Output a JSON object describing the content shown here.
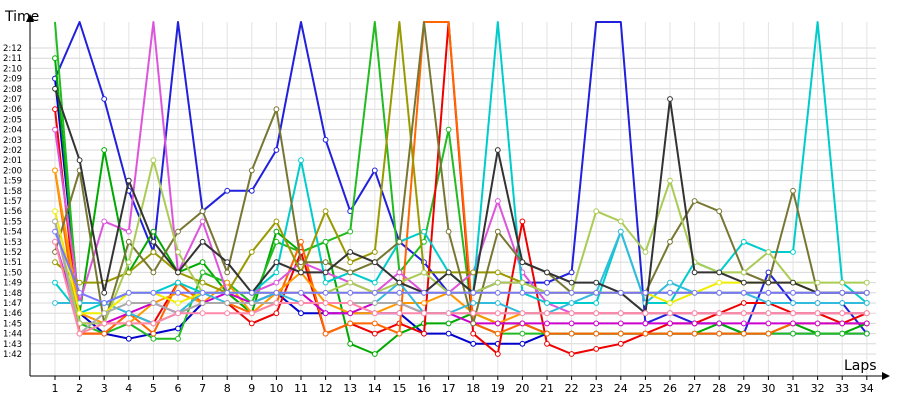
{
  "chart_data": {
    "type": "line",
    "xlabel": "Laps",
    "ylabel": "Time",
    "x": [
      1,
      2,
      3,
      4,
      5,
      6,
      7,
      8,
      9,
      10,
      11,
      12,
      13,
      14,
      15,
      16,
      17,
      18,
      19,
      20,
      21,
      22,
      23,
      24,
      25,
      26,
      27,
      28,
      29,
      30,
      31,
      32,
      33,
      34
    ],
    "xlim": [
      1,
      34
    ],
    "y_ticks": [
      "1:42",
      "1:43",
      "1:44",
      "1:45",
      "1:46",
      "1:47",
      "1:48",
      "1:49",
      "1:50",
      "1:51",
      "1:52",
      "1:53",
      "1:54",
      "1:55",
      "1:56",
      "1:57",
      "1:58",
      "1:59",
      "2:00",
      "2:01",
      "2:02",
      "2:03",
      "2:04",
      "2:05",
      "2:06",
      "2:07",
      "2:08",
      "2:09",
      "2:10",
      "2:11",
      "2:12"
    ],
    "ylim_seconds": [
      101,
      144
    ],
    "grid": true,
    "series": [
      {
        "color": "#0000cc",
        "values": [
          129,
          106,
          104,
          103.5,
          104,
          104.5,
          107,
          107,
          107,
          108,
          106,
          106,
          106,
          106,
          106,
          104,
          104,
          103,
          103,
          103,
          104,
          104,
          104,
          104,
          104,
          104,
          104,
          104,
          104,
          104,
          104,
          104,
          104,
          104
        ]
      },
      {
        "color": "#2020dd",
        "values": [
          129,
          135,
          127,
          118,
          112,
          144,
          116,
          118,
          118,
          122,
          144,
          123,
          116,
          120,
          113,
          111,
          108,
          108,
          109,
          109,
          109,
          110,
          144,
          144,
          105,
          106,
          105,
          105,
          104,
          110,
          107,
          107,
          107,
          104
        ]
      },
      {
        "color": "#00aa00",
        "values": [
          131,
          106,
          122,
          110,
          114,
          110,
          111,
          108,
          106,
          114,
          112,
          113,
          103,
          102,
          104,
          105,
          105,
          106,
          105,
          105,
          104,
          104,
          104,
          104,
          104,
          104,
          104,
          105,
          104,
          104,
          105,
          104,
          104,
          105
        ]
      },
      {
        "color": "#22bb22",
        "values": [
          144,
          105,
          104,
          105,
          103.5,
          103.5,
          110,
          109,
          107,
          113,
          112,
          113,
          114,
          144,
          110,
          113,
          124,
          105,
          104,
          104,
          104,
          104,
          104,
          104,
          104,
          104,
          104,
          104,
          104,
          104,
          104,
          104,
          104,
          104
        ]
      },
      {
        "color": "#ee0000",
        "values": [
          126,
          104,
          104,
          106,
          105,
          109,
          107,
          107,
          105,
          106,
          112,
          104,
          105,
          104,
          105,
          104,
          144,
          104,
          102,
          115,
          103,
          102,
          102.5,
          103,
          104,
          105,
          105,
          106,
          107,
          107,
          106,
          106,
          105,
          106
        ]
      },
      {
        "color": "#ff6600",
        "values": [
          120,
          104,
          104,
          106,
          104,
          109,
          107,
          107,
          106,
          107,
          113,
          104,
          105,
          105,
          104,
          144,
          144,
          105,
          104,
          105,
          104,
          104,
          104,
          104,
          104,
          104,
          104,
          104,
          104,
          104,
          105,
          105,
          105,
          105
        ]
      },
      {
        "color": "#ff9900",
        "values": [
          120,
          106,
          105,
          105,
          107,
          108,
          107,
          109,
          106,
          108,
          110,
          107,
          106,
          106,
          107,
          107,
          108,
          106,
          105,
          106,
          106,
          106,
          106,
          106,
          106,
          106,
          106,
          106,
          106,
          106,
          106,
          106,
          106,
          106
        ]
      },
      {
        "color": "#cc00cc",
        "values": [
          113,
          105,
          105,
          106,
          107,
          106,
          107,
          108,
          107,
          108,
          108,
          106,
          106,
          107,
          107,
          106,
          106,
          105,
          105,
          105,
          105,
          105,
          105,
          105,
          105,
          105,
          105,
          105,
          105,
          105,
          105,
          105,
          105,
          105
        ]
      },
      {
        "color": "#dd55dd",
        "values": [
          124,
          107,
          115,
          114,
          144,
          110,
          115,
          108,
          108,
          109,
          111,
          110,
          109,
          108,
          110,
          108,
          108,
          110,
          117,
          110,
          107,
          106,
          106,
          106,
          106,
          106,
          106,
          106,
          106,
          106,
          106,
          106,
          106,
          106
        ]
      },
      {
        "color": "#00cccc",
        "values": [
          109,
          106,
          107,
          108,
          108,
          109,
          108,
          108,
          108,
          110,
          121,
          109,
          110,
          109,
          113,
          114,
          110,
          108,
          144,
          108,
          107,
          107,
          107,
          114,
          107,
          107,
          111,
          110,
          113,
          112,
          112,
          140,
          109,
          107
        ]
      },
      {
        "color": "#33bbdd",
        "values": [
          107,
          107,
          107,
          106,
          105,
          106,
          108,
          107,
          107,
          108,
          107,
          107,
          107,
          107,
          109,
          106,
          106,
          107,
          107,
          106,
          106,
          107,
          108,
          114,
          107,
          109,
          108,
          108,
          108,
          107,
          107,
          107,
          107,
          107
        ]
      },
      {
        "color": "#999900",
        "values": [
          111,
          109,
          109,
          110,
          112,
          110,
          109,
          108,
          112,
          115,
          110,
          116,
          111,
          112,
          144,
          110,
          110,
          110,
          110,
          109,
          108,
          108,
          108,
          108,
          108,
          108,
          108,
          108,
          108,
          108,
          108,
          108,
          108,
          108
        ]
      },
      {
        "color": "#777733",
        "values": [
          112,
          120,
          105,
          113,
          110,
          114,
          116,
          110,
          120,
          126,
          111,
          111,
          110,
          111,
          113,
          144,
          114,
          105,
          114,
          111,
          110,
          108,
          108,
          108,
          108,
          113,
          117,
          116,
          110,
          109,
          118,
          108,
          108,
          108
        ]
      },
      {
        "color": "#aacc55",
        "values": [
          115,
          105,
          105,
          111,
          121,
          112,
          108,
          108,
          108,
          108,
          108,
          108,
          109,
          108,
          109,
          110,
          108,
          108,
          109,
          109,
          108,
          108,
          116,
          115,
          112,
          119,
          111,
          110,
          110,
          112,
          109,
          109,
          109,
          109
        ]
      },
      {
        "color": "#eeee00",
        "values": [
          116,
          106,
          106,
          108,
          108,
          107,
          108,
          108,
          108,
          108,
          108,
          108,
          108,
          108,
          108,
          108,
          108,
          108,
          108,
          108,
          108,
          108,
          108,
          108,
          108,
          107,
          108,
          109,
          109,
          109,
          109,
          108,
          108,
          108
        ]
      },
      {
        "color": "#333333",
        "values": [
          128,
          121,
          108,
          119,
          113,
          110,
          113,
          111,
          108,
          111,
          110,
          110,
          112,
          111,
          109,
          108,
          110,
          108,
          122,
          111,
          110,
          109,
          109,
          108,
          106,
          127,
          110,
          110,
          109,
          109,
          109,
          108,
          108,
          108
        ]
      },
      {
        "color": "#aaaaaa",
        "values": [
          115,
          104,
          106,
          107,
          107,
          106,
          107,
          107,
          107,
          107,
          107,
          107,
          107,
          107,
          107,
          106,
          106,
          106,
          106,
          106,
          106,
          106,
          106,
          106,
          106,
          106,
          106,
          106,
          106,
          106,
          106,
          106,
          106,
          106
        ]
      },
      {
        "color": "#ff88aa",
        "values": [
          113,
          104,
          105,
          105,
          105,
          106,
          106,
          106,
          106,
          107,
          107,
          107,
          107,
          106,
          106,
          106,
          106,
          106,
          106,
          106,
          106,
          106,
          106,
          106,
          106,
          106,
          106,
          106,
          106,
          106,
          106,
          106,
          106,
          106
        ]
      },
      {
        "color": "#7777ff",
        "values": [
          114,
          108,
          107,
          108,
          108,
          108,
          108,
          108,
          108,
          108,
          108,
          108,
          108,
          108,
          108,
          108,
          108,
          108,
          108,
          108,
          108,
          108,
          108,
          108,
          108,
          108,
          108,
          108,
          108,
          108,
          108,
          108,
          108,
          108
        ]
      }
    ]
  }
}
